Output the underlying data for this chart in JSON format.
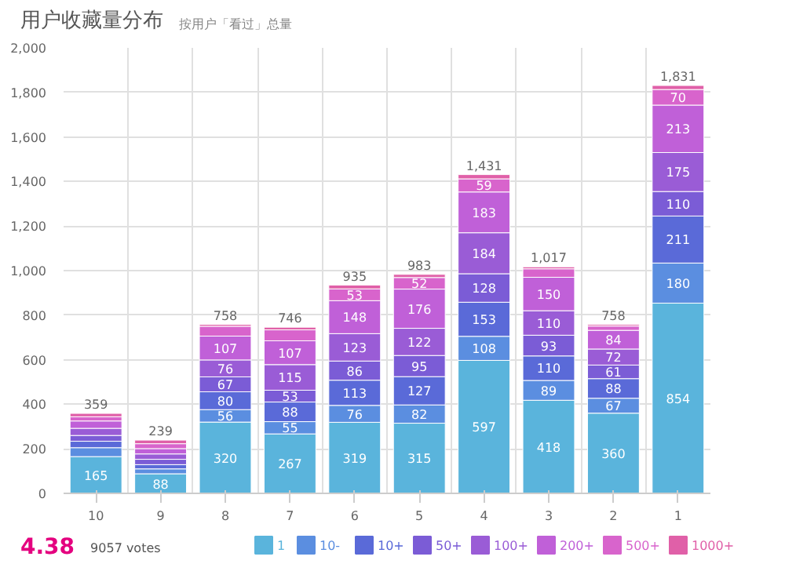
{
  "chart_data": {
    "type": "bar",
    "stacked": true,
    "title": "用户收藏量分布",
    "subtitle": "按用户「看过」总量",
    "categories": [
      "10",
      "9",
      "8",
      "7",
      "6",
      "5",
      "4",
      "3",
      "2",
      "1"
    ],
    "series": [
      {
        "name": "1",
        "color": "#5ab4dc",
        "values": [
          165,
          88,
          320,
          267,
          319,
          315,
          597,
          418,
          360,
          854
        ],
        "value_labels": [
          "165",
          "88",
          "320",
          "267",
          "319",
          "315",
          "597",
          "418",
          "360",
          "854"
        ]
      },
      {
        "name": "10-",
        "color": "#5b8ee0",
        "values": [
          40,
          22,
          56,
          55,
          76,
          82,
          108,
          89,
          67,
          180
        ],
        "value_labels": [
          null,
          null,
          "56",
          "55",
          "76",
          "82",
          "108",
          "89",
          "67",
          "180"
        ]
      },
      {
        "name": "10+",
        "color": "#5a6ad8",
        "values": [
          29,
          19,
          80,
          88,
          113,
          127,
          153,
          110,
          88,
          211
        ],
        "value_labels": [
          null,
          null,
          "80",
          "88",
          "113",
          "127",
          "153",
          "110",
          "88",
          "211"
        ]
      },
      {
        "name": "50+",
        "color": "#7b5cd6",
        "values": [
          26,
          24,
          67,
          53,
          86,
          95,
          128,
          93,
          61,
          110
        ],
        "value_labels": [
          null,
          null,
          "67",
          "53",
          "86",
          "95",
          "128",
          "93",
          "61",
          "110"
        ]
      },
      {
        "name": "100+",
        "color": "#9a5cd6",
        "values": [
          32,
          24,
          76,
          115,
          123,
          122,
          184,
          110,
          72,
          175
        ],
        "value_labels": [
          null,
          null,
          "76",
          "115",
          "123",
          "122",
          "184",
          "110",
          "72",
          "175"
        ]
      },
      {
        "name": "200+",
        "color": "#c060d8",
        "values": [
          33,
          24,
          107,
          107,
          148,
          176,
          183,
          150,
          84,
          213
        ],
        "value_labels": [
          null,
          null,
          "107",
          "107",
          "148",
          "176",
          "183",
          "150",
          "84",
          "213"
        ]
      },
      {
        "name": "500+",
        "color": "#d864cc",
        "values": [
          19,
          22,
          44,
          49,
          53,
          52,
          59,
          38,
          19,
          70
        ],
        "value_labels": [
          null,
          null,
          null,
          null,
          "53",
          "52",
          "59",
          null,
          null,
          "70"
        ]
      },
      {
        "name": "1000+",
        "color": "#e060a8",
        "values": [
          15,
          16,
          8,
          12,
          17,
          14,
          19,
          9,
          7,
          18
        ]
      }
    ],
    "totals": [
      "359",
      "239",
      "758",
      "746",
      "935",
      "983",
      "1,431",
      "1,017",
      "758",
      "1,831"
    ],
    "ylim": [
      0,
      2000
    ],
    "yticks": [
      0,
      200,
      400,
      600,
      800,
      {
        "value": 1000,
        "label": "1,000"
      },
      {
        "value": 1200,
        "label": "1,200"
      },
      {
        "value": 1400,
        "label": "1,400"
      },
      {
        "value": 1600,
        "label": "1,600"
      },
      {
        "value": 1800,
        "label": "1,800"
      },
      {
        "value": 2000,
        "label": "2,000"
      }
    ],
    "grid": true,
    "legend": "bottom",
    "annotations": [
      "4.38",
      "9057 votes"
    ]
  }
}
